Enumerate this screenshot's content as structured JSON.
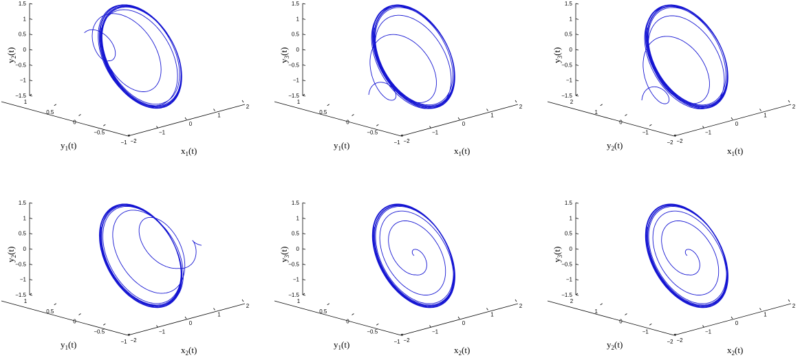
{
  "chart_data": [
    {
      "type": "line",
      "panel": "top-left",
      "xlabel": {
        "base": "x",
        "sub": "1",
        "arg": "(t)"
      },
      "ylabel": {
        "base": "y",
        "sub": "1",
        "arg": "(t)"
      },
      "zlabel": {
        "base": "y",
        "sub": "2",
        "arg": "(t)"
      },
      "xlim": [
        -2,
        2
      ],
      "ylim": [
        -1,
        1
      ],
      "zlim": [
        -1.5,
        1.5
      ],
      "xticks": [
        "−2",
        "−1",
        "0",
        "1",
        "2"
      ],
      "yticks": [
        "1",
        "0.5",
        "0",
        "−0.5",
        "−1"
      ],
      "zticks": [
        "1.5",
        "1",
        "0.5",
        "0",
        "−0.5",
        "−1",
        "−1.5"
      ],
      "series": [
        {
          "color": "#1414d2",
          "start": [
            -1.5,
            0.75,
            0.9
          ],
          "tilt": 0.55
        }
      ]
    },
    {
      "type": "line",
      "panel": "top-middle",
      "xlabel": {
        "base": "x",
        "sub": "1",
        "arg": "(t)"
      },
      "ylabel": {
        "base": "y",
        "sub": "1",
        "arg": "(t)"
      },
      "zlabel": {
        "base": "y",
        "sub": "3",
        "arg": "(t)"
      },
      "xlim": [
        -2,
        2
      ],
      "ylim": [
        -1,
        1
      ],
      "zlim": [
        -1.5,
        1.5
      ],
      "xticks": [
        "−2",
        "−1",
        "0",
        "1",
        "2"
      ],
      "yticks": [
        "1",
        "0.5",
        "0",
        "−0.5",
        "−1"
      ],
      "zticks": [
        "1.5",
        "1",
        "0.5",
        "0",
        "−0.5",
        "−1",
        "−1.5"
      ],
      "series": [
        {
          "color": "#1414d2",
          "start": [
            -1.2,
            0.6,
            -0.8
          ],
          "tilt": 0.6
        }
      ]
    },
    {
      "type": "line",
      "panel": "top-right",
      "xlabel": {
        "base": "x",
        "sub": "1",
        "arg": "(t)"
      },
      "ylabel": {
        "base": "y",
        "sub": "2",
        "arg": "(t)"
      },
      "zlabel": {
        "base": "y",
        "sub": "3",
        "arg": "(t)"
      },
      "xlim": [
        -2,
        2
      ],
      "ylim": [
        -2,
        2
      ],
      "zlim": [
        -1.5,
        1.5
      ],
      "xticks": [
        "−2",
        "−1",
        "0",
        "1",
        "2"
      ],
      "yticks": [
        "2",
        "1",
        "0",
        "−1",
        "−2"
      ],
      "zticks": [
        "1.5",
        "1",
        "0.5",
        "0",
        "−0.5",
        "−1",
        "−1.5"
      ],
      "series": [
        {
          "color": "#1414d2",
          "start": [
            -1.2,
            1.0,
            -0.8
          ],
          "tilt": 0.6
        }
      ]
    },
    {
      "type": "line",
      "panel": "bottom-left",
      "xlabel": {
        "base": "x",
        "sub": "2",
        "arg": "(t)"
      },
      "ylabel": {
        "base": "y",
        "sub": "1",
        "arg": "(t)"
      },
      "zlabel": {
        "base": "y",
        "sub": "2",
        "arg": "(t)"
      },
      "xlim": [
        -2,
        2
      ],
      "ylim": [
        -1,
        1
      ],
      "zlim": [
        -1.5,
        1.5
      ],
      "xticks": [
        "−2",
        "−1",
        "0",
        "1",
        "2"
      ],
      "yticks": [
        "1",
        "0.5",
        "0",
        "−0.5",
        "−1"
      ],
      "zticks": [
        "1.5",
        "1",
        "0.5",
        "0",
        "−0.5",
        "−1",
        "−1.5"
      ],
      "series": [
        {
          "color": "#1414d2",
          "start": [
            1.6,
            -0.2,
            0.2
          ],
          "tilt": 0.5
        }
      ]
    },
    {
      "type": "line",
      "panel": "bottom-middle",
      "xlabel": {
        "base": "x",
        "sub": "2",
        "arg": "(t)"
      },
      "ylabel": {
        "base": "y",
        "sub": "1",
        "arg": "(t)"
      },
      "zlabel": {
        "base": "y",
        "sub": "3",
        "arg": "(t)"
      },
      "xlim": [
        -2,
        2
      ],
      "ylim": [
        -1,
        1
      ],
      "zlim": [
        -1.5,
        1.5
      ],
      "xticks": [
        "−2",
        "−1",
        "0",
        "1",
        "2"
      ],
      "yticks": [
        "1",
        "0.5",
        "0",
        "−0.5",
        "−1"
      ],
      "zticks": [
        "1.5",
        "1",
        "0.5",
        "0",
        "−0.5",
        "−1",
        "−1.5"
      ],
      "series": [
        {
          "color": "#1414d2",
          "start": [
            0.0,
            0.0,
            0.0
          ],
          "tilt": 0.55
        }
      ]
    },
    {
      "type": "line",
      "panel": "bottom-right",
      "xlabel": {
        "base": "x",
        "sub": "2",
        "arg": "(t)"
      },
      "ylabel": {
        "base": "y",
        "sub": "2",
        "arg": "(t)"
      },
      "zlabel": {
        "base": "y",
        "sub": "3",
        "arg": "(t)"
      },
      "xlim": [
        -2,
        2
      ],
      "ylim": [
        -2,
        2
      ],
      "zlim": [
        -1.5,
        1.5
      ],
      "xticks": [
        "−2",
        "−1",
        "0",
        "1",
        "2"
      ],
      "yticks": [
        "2",
        "1",
        "0",
        "−1",
        "−2"
      ],
      "zticks": [
        "1.5",
        "1",
        "0.5",
        "0",
        "−0.5",
        "−1",
        "−1.5"
      ],
      "series": [
        {
          "color": "#1414d2",
          "start": [
            0.0,
            0.0,
            0.0
          ],
          "tilt": 0.55
        }
      ]
    }
  ]
}
